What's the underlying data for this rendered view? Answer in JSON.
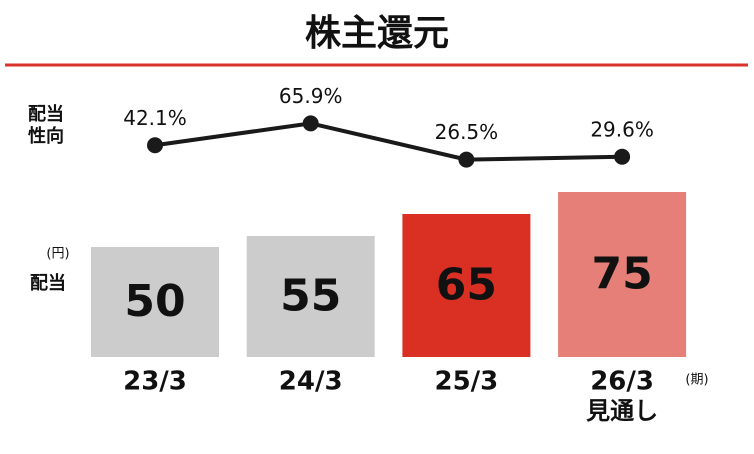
{
  "chart_data": {
    "type": "bar",
    "title": "株主還元",
    "title_rule_color": "#d9322a",
    "categories": [
      "23/3",
      "24/3",
      "25/3",
      "26/3"
    ],
    "category_notes": [
      null,
      null,
      null,
      "見通し"
    ],
    "x_unit": "(期)",
    "ylim": [
      0,
      75
    ],
    "y2lim": [
      0,
      100
    ],
    "series": [
      {
        "name": "配当",
        "unit": "(円)",
        "type": "bar",
        "colors": [
          "#cccccc",
          "#cccccc",
          "#d93023",
          "#e57f78"
        ],
        "label_colors": [
          "#111111",
          "#111111",
          "#fbeaea",
          "#ffffff"
        ],
        "values": [
          50,
          55,
          65,
          75
        ]
      },
      {
        "name": "配当性向",
        "type": "line",
        "axis": "y2",
        "color": "#1a1a1a",
        "values": [
          42.1,
          65.9,
          26.5,
          29.6
        ],
        "value_labels": [
          "42.1%",
          "65.9%",
          "26.5%",
          "29.6%"
        ]
      }
    ]
  }
}
